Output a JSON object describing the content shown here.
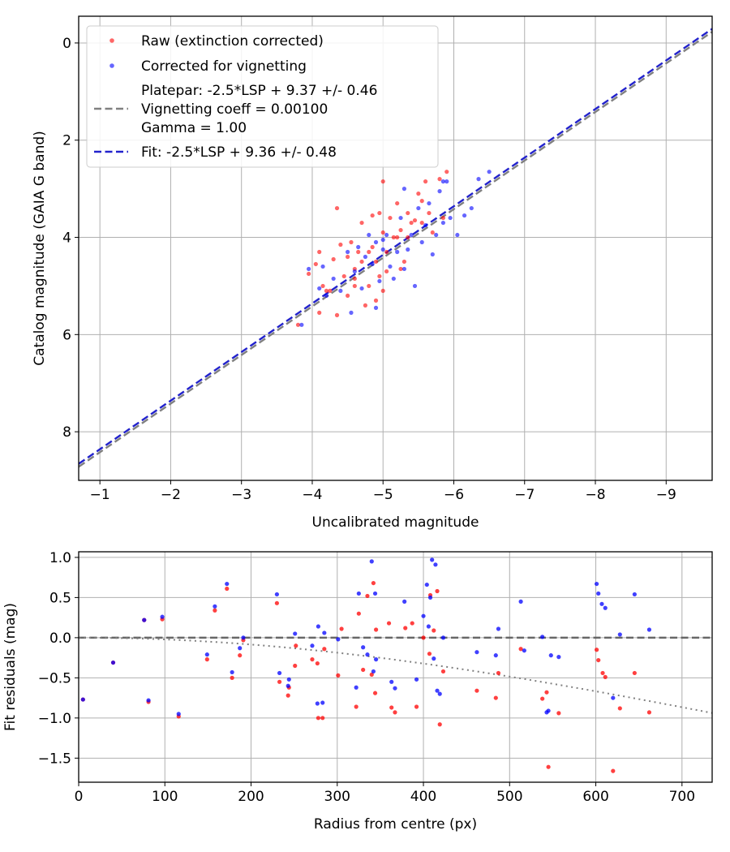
{
  "chart_data": [
    {
      "type": "scatter",
      "xlabel": "Uncalibrated magnitude",
      "ylabel": "Catalog magnitude (GAIA G band)",
      "xlim": [
        -0.7,
        -9.65
      ],
      "ylim": [
        9.0,
        -0.55
      ],
      "xticks": [
        -1,
        -2,
        -3,
        -4,
        -5,
        -6,
        -7,
        -8,
        -9
      ],
      "xtick_labels": [
        "−1",
        "−2",
        "−3",
        "−4",
        "−5",
        "−6",
        "−7",
        "−8",
        "−9"
      ],
      "yticks": [
        0,
        2,
        4,
        6,
        8
      ],
      "ytick_labels": [
        "0",
        "2",
        "4",
        "6",
        "8"
      ],
      "grid": true,
      "legend_position": "top-left",
      "legend": [
        {
          "label": "Raw (extinction corrected)",
          "marker": "dot",
          "color": "#ff0000"
        },
        {
          "label": "Corrected for vignetting",
          "marker": "dot",
          "color": "#0000ff"
        },
        {
          "label": "Platepar: -2.5*LSP + 9.37 +/- 0.46",
          "line2": "Vignetting coeff = 0.00100",
          "line3": "Gamma = 1.00",
          "marker": "dashed",
          "color": "#808080"
        },
        {
          "label": "Fit: -2.5*LSP + 9.36 +/- 0.48",
          "marker": "dashed",
          "color": "#2222cc"
        }
      ],
      "lines": [
        {
          "role": "platepar",
          "color": "#808080",
          "style": "dashed",
          "x": [
            -0.7,
            -9.65
          ],
          "y": [
            8.72,
            -0.23
          ]
        },
        {
          "role": "fit",
          "color": "#2222cc",
          "style": "dashed",
          "x": [
            -0.7,
            -9.65
          ],
          "y": [
            8.66,
            -0.29
          ]
        }
      ],
      "series": [
        {
          "color": "#ff0000",
          "points": [
            [
              -3.8,
              5.8
            ],
            [
              -3.95,
              4.75
            ],
            [
              -4.05,
              4.55
            ],
            [
              -4.1,
              4.3
            ],
            [
              -4.1,
              5.55
            ],
            [
              -4.15,
              5.0
            ],
            [
              -4.2,
              5.1
            ],
            [
              -4.25,
              5.1
            ],
            [
              -4.3,
              4.45
            ],
            [
              -4.35,
              3.4
            ],
            [
              -4.35,
              5.6
            ],
            [
              -4.4,
              4.15
            ],
            [
              -4.45,
              4.8
            ],
            [
              -4.5,
              4.4
            ],
            [
              -4.5,
              5.2
            ],
            [
              -4.55,
              4.1
            ],
            [
              -4.6,
              4.65
            ],
            [
              -4.6,
              5.0
            ],
            [
              -4.65,
              4.3
            ],
            [
              -4.7,
              4.5
            ],
            [
              -4.7,
              3.7
            ],
            [
              -4.75,
              5.4
            ],
            [
              -4.8,
              4.3
            ],
            [
              -4.8,
              5.0
            ],
            [
              -4.85,
              3.55
            ],
            [
              -4.85,
              4.2
            ],
            [
              -4.9,
              4.5
            ],
            [
              -4.9,
              5.3
            ],
            [
              -4.95,
              3.5
            ],
            [
              -4.95,
              4.8
            ],
            [
              -5.0,
              2.85
            ],
            [
              -5.0,
              3.9
            ],
            [
              -5.05,
              4.3
            ],
            [
              -5.05,
              4.7
            ],
            [
              -5.1,
              3.6
            ],
            [
              -5.15,
              4.0
            ],
            [
              -5.2,
              3.3
            ],
            [
              -5.2,
              4.0
            ],
            [
              -5.25,
              3.85
            ],
            [
              -5.3,
              4.5
            ],
            [
              -5.35,
              3.5
            ],
            [
              -5.35,
              4.0
            ],
            [
              -5.4,
              3.7
            ],
            [
              -5.45,
              3.65
            ],
            [
              -5.5,
              3.1
            ],
            [
              -5.55,
              3.25
            ],
            [
              -5.55,
              3.7
            ],
            [
              -5.6,
              2.85
            ],
            [
              -5.65,
              3.5
            ],
            [
              -5.7,
              3.9
            ],
            [
              -5.8,
              2.8
            ],
            [
              -5.85,
              3.6
            ],
            [
              -5.9,
              2.65
            ],
            [
              -5.0,
              5.1
            ],
            [
              -4.6,
              4.85
            ],
            [
              -5.25,
              4.65
            ]
          ]
        },
        {
          "color": "#0000ff",
          "points": [
            [
              -3.85,
              5.8
            ],
            [
              -3.95,
              4.65
            ],
            [
              -4.1,
              5.05
            ],
            [
              -4.15,
              4.6
            ],
            [
              -4.2,
              5.2
            ],
            [
              -4.3,
              4.85
            ],
            [
              -4.4,
              5.1
            ],
            [
              -4.5,
              4.3
            ],
            [
              -4.55,
              5.55
            ],
            [
              -4.6,
              4.7
            ],
            [
              -4.65,
              4.2
            ],
            [
              -4.7,
              5.05
            ],
            [
              -4.75,
              4.4
            ],
            [
              -4.8,
              3.95
            ],
            [
              -4.85,
              4.55
            ],
            [
              -4.9,
              5.45
            ],
            [
              -4.95,
              4.9
            ],
            [
              -5.0,
              4.25
            ],
            [
              -5.05,
              3.95
            ],
            [
              -5.1,
              4.6
            ],
            [
              -5.15,
              4.85
            ],
            [
              -5.2,
              4.3
            ],
            [
              -5.25,
              3.6
            ],
            [
              -5.3,
              4.65
            ],
            [
              -5.35,
              4.25
            ],
            [
              -5.4,
              3.95
            ],
            [
              -5.45,
              5.0
            ],
            [
              -5.5,
              3.4
            ],
            [
              -5.55,
              4.1
            ],
            [
              -5.6,
              3.75
            ],
            [
              -5.65,
              3.3
            ],
            [
              -5.7,
              4.35
            ],
            [
              -5.75,
              3.95
            ],
            [
              -5.8,
              3.05
            ],
            [
              -5.85,
              3.7
            ],
            [
              -5.9,
              2.85
            ],
            [
              -5.95,
              3.6
            ],
            [
              -6.05,
              3.95
            ],
            [
              -6.15,
              3.55
            ],
            [
              -6.25,
              3.4
            ],
            [
              -6.35,
              2.8
            ],
            [
              -6.5,
              2.65
            ],
            [
              -5.0,
              4.05
            ],
            [
              -5.3,
              3.0
            ],
            [
              -4.9,
              4.1
            ],
            [
              -5.85,
              2.85
            ]
          ]
        }
      ]
    },
    {
      "type": "scatter",
      "xlabel": "Radius from centre (px)",
      "ylabel": "Fit residuals (mag)",
      "xlim": [
        0,
        735
      ],
      "ylim": [
        -1.8,
        1.07
      ],
      "xticks": [
        0,
        100,
        200,
        300,
        400,
        500,
        600,
        700
      ],
      "xtick_labels": [
        "0",
        "100",
        "200",
        "300",
        "400",
        "500",
        "600",
        "700"
      ],
      "yticks": [
        1.0,
        0.5,
        0.0,
        -0.5,
        -1.0,
        -1.5
      ],
      "ytick_labels": [
        "1.0",
        "0.5",
        "0.0",
        "−0.5",
        "−1.0",
        "−1.5"
      ],
      "grid": true,
      "lines": [
        {
          "role": "zero",
          "color": "#555555",
          "style": "dashed",
          "x": [
            0,
            735
          ],
          "y": [
            0,
            0
          ]
        },
        {
          "role": "vignetting",
          "color": "#808080",
          "style": "dotted",
          "curve": "vignetting",
          "coeff": 0.001,
          "x": [
            0,
            735
          ]
        }
      ],
      "series": [
        {
          "color": "#ff0000",
          "points": [
            [
              5,
              -0.77
            ],
            [
              40,
              -0.31
            ],
            [
              76,
              0.22
            ],
            [
              81,
              -0.8
            ],
            [
              97,
              0.23
            ],
            [
              116,
              -0.98
            ],
            [
              149,
              -0.27
            ],
            [
              158,
              0.34
            ],
            [
              172,
              0.61
            ],
            [
              178,
              -0.5
            ],
            [
              187,
              -0.22
            ],
            [
              191,
              -0.03
            ],
            [
              230,
              0.43
            ],
            [
              233,
              -0.55
            ],
            [
              243,
              -0.72
            ],
            [
              244,
              -0.62
            ],
            [
              251,
              -0.35
            ],
            [
              252,
              -0.1
            ],
            [
              271,
              -0.27
            ],
            [
              277,
              -0.32
            ],
            [
              278,
              -1.0
            ],
            [
              283,
              -1.0
            ],
            [
              285,
              -0.14
            ],
            [
              301,
              -0.47
            ],
            [
              305,
              0.11
            ],
            [
              322,
              -0.86
            ],
            [
              325,
              0.3
            ],
            [
              330,
              -0.4
            ],
            [
              335,
              0.52
            ],
            [
              340,
              -0.46
            ],
            [
              342,
              0.68
            ],
            [
              344,
              -0.69
            ],
            [
              345,
              0.1
            ],
            [
              363,
              -0.87
            ],
            [
              367,
              -0.93
            ],
            [
              360,
              0.18
            ],
            [
              379,
              0.12
            ],
            [
              387,
              0.18
            ],
            [
              392,
              -0.86
            ],
            [
              400,
              0.0
            ],
            [
              407,
              -0.2
            ],
            [
              408,
              0.53
            ],
            [
              412,
              0.09
            ],
            [
              416,
              0.58
            ],
            [
              419,
              -1.08
            ],
            [
              423,
              -0.42
            ],
            [
              462,
              -0.66
            ],
            [
              484,
              -0.75
            ],
            [
              487,
              -0.44
            ],
            [
              513,
              -0.14
            ],
            [
              538,
              -0.76
            ],
            [
              543,
              -0.68
            ],
            [
              545,
              -1.61
            ],
            [
              557,
              -0.94
            ],
            [
              601,
              -0.15
            ],
            [
              603,
              -0.28
            ],
            [
              608,
              -0.44
            ],
            [
              611,
              -0.49
            ],
            [
              620,
              -1.66
            ],
            [
              628,
              -0.88
            ],
            [
              645,
              -0.44
            ],
            [
              662,
              -0.93
            ]
          ]
        },
        {
          "color": "#0000ff",
          "points": [
            [
              5,
              -0.77
            ],
            [
              40,
              -0.31
            ],
            [
              76,
              0.22
            ],
            [
              81,
              -0.78
            ],
            [
              97,
              0.26
            ],
            [
              116,
              -0.95
            ],
            [
              149,
              -0.21
            ],
            [
              158,
              0.39
            ],
            [
              172,
              0.67
            ],
            [
              178,
              -0.43
            ],
            [
              187,
              -0.13
            ],
            [
              191,
              0.0
            ],
            [
              230,
              0.54
            ],
            [
              233,
              -0.44
            ],
            [
              243,
              -0.6
            ],
            [
              244,
              -0.52
            ],
            [
              251,
              0.05
            ],
            [
              271,
              -0.1
            ],
            [
              277,
              -0.82
            ],
            [
              278,
              0.14
            ],
            [
              283,
              -0.81
            ],
            [
              285,
              0.06
            ],
            [
              301,
              -0.02
            ],
            [
              322,
              -0.62
            ],
            [
              325,
              0.55
            ],
            [
              330,
              -0.12
            ],
            [
              335,
              -0.21
            ],
            [
              340,
              0.95
            ],
            [
              342,
              -0.42
            ],
            [
              344,
              0.55
            ],
            [
              345,
              -0.27
            ],
            [
              363,
              -0.55
            ],
            [
              367,
              -0.63
            ],
            [
              378,
              0.45
            ],
            [
              392,
              -0.52
            ],
            [
              400,
              0.27
            ],
            [
              404,
              0.66
            ],
            [
              406,
              0.14
            ],
            [
              408,
              0.5
            ],
            [
              410,
              0.97
            ],
            [
              412,
              -0.26
            ],
            [
              414,
              0.91
            ],
            [
              416,
              -0.66
            ],
            [
              419,
              -0.7
            ],
            [
              423,
              0.0
            ],
            [
              462,
              -0.18
            ],
            [
              484,
              -0.22
            ],
            [
              487,
              0.11
            ],
            [
              513,
              0.45
            ],
            [
              517,
              -0.16
            ],
            [
              538,
              0.01
            ],
            [
              543,
              -0.93
            ],
            [
              545,
              -0.91
            ],
            [
              548,
              -0.22
            ],
            [
              557,
              -0.24
            ],
            [
              601,
              0.67
            ],
            [
              603,
              0.55
            ],
            [
              607,
              0.42
            ],
            [
              611,
              0.37
            ],
            [
              620,
              -0.75
            ],
            [
              628,
              0.04
            ],
            [
              645,
              0.54
            ],
            [
              662,
              0.1
            ]
          ]
        }
      ]
    }
  ]
}
